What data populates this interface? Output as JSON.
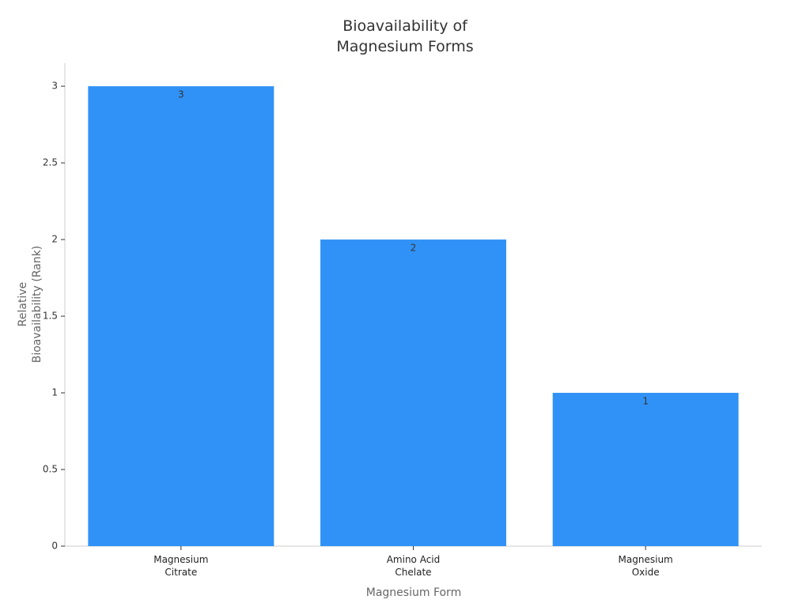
{
  "chart_data": {
    "type": "bar",
    "title": "Bioavailability of\nMagnesium Forms",
    "x_label": "Magnesium Form",
    "y_label": "Relative\nBioavailability (Rank)",
    "categories": [
      "Magnesium\nCitrate",
      "Amino Acid\nChelate",
      "Magnesium\nOxide"
    ],
    "values": [
      3,
      2,
      1
    ],
    "color": "#3092f6",
    "ylim": [
      0,
      3.15
    ],
    "yticks": [
      0,
      0.5,
      1,
      1.5,
      2,
      2.5,
      3
    ],
    "grid": false
  }
}
